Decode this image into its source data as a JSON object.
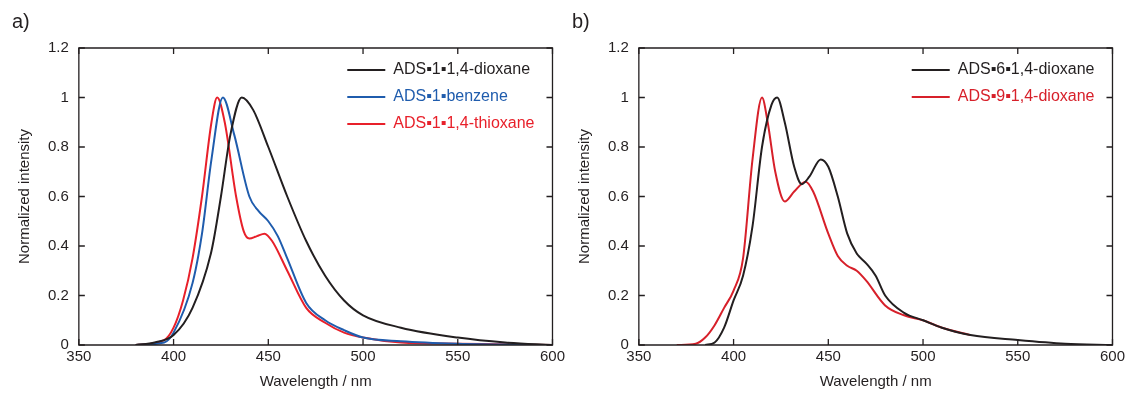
{
  "chart_data": [
    {
      "type": "line",
      "annotations": [
        "a)"
      ],
      "xlabel": "Wavelength / nm",
      "ylabel": "Normalized intensity",
      "xlim": [
        350,
        600
      ],
      "xticks": [
        350,
        400,
        450,
        500,
        550,
        600
      ],
      "ylim": [
        0,
        1.2
      ],
      "yticks": [
        0,
        0.2,
        0.4,
        0.6,
        0.8,
        1,
        1.2
      ],
      "legend": "top right",
      "series": [
        {
          "name": "ADS▪1▪1,4-dioxane",
          "color": "#231f20",
          "x": [
            380,
            390,
            400,
            410,
            420,
            425,
            430,
            436,
            442,
            450,
            460,
            470,
            480,
            490,
            500,
            520,
            550,
            575,
            600
          ],
          "values": [
            0,
            0.01,
            0.04,
            0.15,
            0.38,
            0.6,
            0.85,
            1,
            0.95,
            0.8,
            0.6,
            0.42,
            0.28,
            0.18,
            0.12,
            0.07,
            0.03,
            0.01,
            0
          ]
        },
        {
          "name": "ADS▪1▪benzene",
          "color": "#1f5cad",
          "x": [
            380,
            395,
            400,
            410,
            415,
            420,
            426,
            432,
            440,
            445,
            450,
            455,
            460,
            470,
            480,
            490,
            500,
            520,
            550,
            600
          ],
          "values": [
            0,
            0.01,
            0.05,
            0.25,
            0.45,
            0.75,
            1,
            0.85,
            0.6,
            0.54,
            0.5,
            0.44,
            0.35,
            0.17,
            0.1,
            0.06,
            0.03,
            0.015,
            0.005,
            0
          ]
        },
        {
          "name": "ADS▪1▪1,4-thioxane",
          "color": "#e8202a",
          "x": [
            380,
            395,
            400,
            405,
            410,
            415,
            420,
            423,
            427,
            433,
            437,
            440,
            444,
            448,
            452,
            460,
            470,
            480,
            490,
            500,
            520,
            550,
            600
          ],
          "values": [
            0,
            0.02,
            0.07,
            0.18,
            0.35,
            0.6,
            0.9,
            1,
            0.9,
            0.6,
            0.46,
            0.43,
            0.44,
            0.45,
            0.42,
            0.3,
            0.15,
            0.09,
            0.05,
            0.03,
            0.01,
            0.005,
            0
          ]
        }
      ]
    },
    {
      "type": "line",
      "annotations": [
        "b)"
      ],
      "xlabel": "Wavelength / nm",
      "ylabel": "Normalized intensity",
      "xlim": [
        350,
        600
      ],
      "xticks": [
        350,
        400,
        450,
        500,
        550,
        600
      ],
      "ylim": [
        0,
        1.2
      ],
      "yticks": [
        0,
        0.2,
        0.4,
        0.6,
        0.8,
        1,
        1.2
      ],
      "legend": "top right",
      "series": [
        {
          "name": "ADS▪6▪1,4-dioxane",
          "color": "#231f20",
          "x": [
            385,
            390,
            395,
            400,
            405,
            410,
            415,
            420,
            423,
            427,
            432,
            436,
            440,
            446,
            450,
            455,
            460,
            465,
            470,
            475,
            480,
            490,
            500,
            510,
            525,
            550,
            575,
            600
          ],
          "values": [
            0,
            0.01,
            0.07,
            0.18,
            0.28,
            0.48,
            0.8,
            0.97,
            1,
            0.9,
            0.72,
            0.65,
            0.68,
            0.75,
            0.72,
            0.6,
            0.45,
            0.37,
            0.33,
            0.28,
            0.2,
            0.13,
            0.1,
            0.07,
            0.04,
            0.02,
            0.005,
            0
          ]
        },
        {
          "name": "ADS▪9▪1,4-dioxane",
          "color": "#d7202a",
          "x": [
            370,
            380,
            385,
            390,
            395,
            400,
            405,
            410,
            415,
            418,
            422,
            427,
            432,
            438,
            442,
            450,
            455,
            460,
            465,
            470,
            480,
            490,
            500,
            510,
            525
          ],
          "values": [
            0,
            0.005,
            0.03,
            0.08,
            0.15,
            0.22,
            0.35,
            0.75,
            1,
            0.9,
            0.7,
            0.58,
            0.62,
            0.66,
            0.62,
            0.45,
            0.36,
            0.32,
            0.3,
            0.26,
            0.16,
            0.12,
            0.1,
            0.07,
            0.04
          ]
        }
      ]
    }
  ]
}
